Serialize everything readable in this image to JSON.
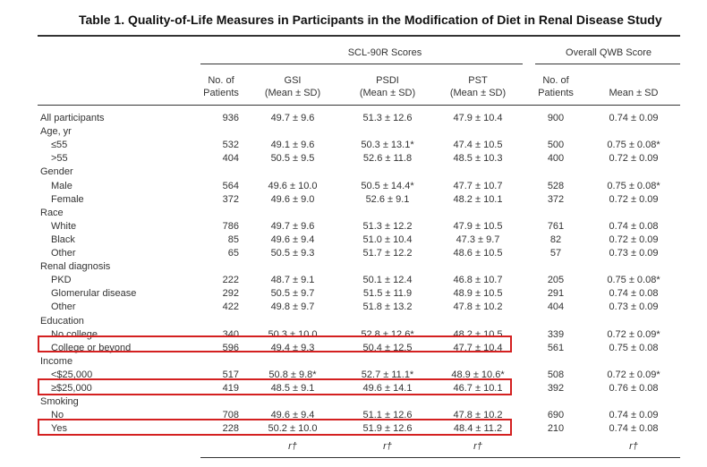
{
  "title": "Table 1. Quality-of-Life Measures in Participants in the Modification of Diet in Renal Disease Study",
  "group_headers": {
    "scl": "SCL-90R Scores",
    "qwb": "Overall QWB Score"
  },
  "columns": {
    "n": [
      "No. of",
      "Patients"
    ],
    "gsi": [
      "GSI",
      "(Mean ± SD)"
    ],
    "psdi": [
      "PSDI",
      "(Mean ± SD)"
    ],
    "pst": [
      "PST",
      "(Mean ± SD)"
    ],
    "qn": [
      "No. of",
      "Patients"
    ],
    "qm": [
      "",
      "Mean ± SD"
    ]
  },
  "rows": [
    {
      "label": "All participants",
      "indent": false,
      "n": "936",
      "gsi": "49.7 ± 9.6",
      "psdi": "51.3 ± 12.6",
      "pst": "47.9 ± 10.4",
      "qn": "900",
      "qm": "0.74 ± 0.09"
    },
    {
      "label": "Age, yr",
      "indent": false,
      "n": "",
      "gsi": "",
      "psdi": "",
      "pst": "",
      "qn": "",
      "qm": ""
    },
    {
      "label": "≤55",
      "indent": true,
      "n": "532",
      "gsi": "49.1 ± 9.6",
      "psdi": "50.3 ± 13.1*",
      "pst": "47.4 ± 10.5",
      "qn": "500",
      "qm": "0.75 ± 0.08*"
    },
    {
      "label": ">55",
      "indent": true,
      "n": "404",
      "gsi": "50.5 ± 9.5",
      "psdi": "52.6 ± 11.8",
      "pst": "48.5 ± 10.3",
      "qn": "400",
      "qm": "0.72 ± 0.09"
    },
    {
      "label": "Gender",
      "indent": false,
      "n": "",
      "gsi": "",
      "psdi": "",
      "pst": "",
      "qn": "",
      "qm": ""
    },
    {
      "label": "Male",
      "indent": true,
      "n": "564",
      "gsi": "49.6 ± 10.0",
      "psdi": "50.5 ± 14.4*",
      "pst": "47.7 ± 10.7",
      "qn": "528",
      "qm": "0.75 ± 0.08*"
    },
    {
      "label": "Female",
      "indent": true,
      "n": "372",
      "gsi": "49.6 ± 9.0",
      "psdi": "52.6 ± 9.1",
      "pst": "48.2 ± 10.1",
      "qn": "372",
      "qm": "0.72 ± 0.09"
    },
    {
      "label": "Race",
      "indent": false,
      "n": "",
      "gsi": "",
      "psdi": "",
      "pst": "",
      "qn": "",
      "qm": ""
    },
    {
      "label": "White",
      "indent": true,
      "n": "786",
      "gsi": "49.7 ± 9.6",
      "psdi": "51.3 ± 12.2",
      "pst": "47.9 ± 10.5",
      "qn": "761",
      "qm": "0.74 ± 0.08"
    },
    {
      "label": "Black",
      "indent": true,
      "n": "85",
      "gsi": "49.6 ± 9.4",
      "psdi": "51.0 ± 10.4",
      "pst": "47.3 ± 9.7",
      "qn": "82",
      "qm": "0.72 ± 0.09"
    },
    {
      "label": "Other",
      "indent": true,
      "n": "65",
      "gsi": "50.5 ± 9.3",
      "psdi": "51.7 ± 12.2",
      "pst": "48.6 ± 10.5",
      "qn": "57",
      "qm": "0.73 ± 0.09"
    },
    {
      "label": "Renal diagnosis",
      "indent": false,
      "n": "",
      "gsi": "",
      "psdi": "",
      "pst": "",
      "qn": "",
      "qm": ""
    },
    {
      "label": "PKD",
      "indent": true,
      "n": "222",
      "gsi": "48.7 ± 9.1",
      "psdi": "50.1 ± 12.4",
      "pst": "46.8 ± 10.7",
      "qn": "205",
      "qm": "0.75 ± 0.08*"
    },
    {
      "label": "Glomerular disease",
      "indent": true,
      "n": "292",
      "gsi": "50.5 ± 9.7",
      "psdi": "51.5 ± 11.9",
      "pst": "48.9 ± 10.5",
      "qn": "291",
      "qm": "0.74 ± 0.08"
    },
    {
      "label": "Other",
      "indent": true,
      "n": "422",
      "gsi": "49.8 ± 9.7",
      "psdi": "51.8 ± 13.2",
      "pst": "47.8 ± 10.2",
      "qn": "404",
      "qm": "0.73 ± 0.09"
    },
    {
      "label": "Education",
      "indent": false,
      "n": "",
      "gsi": "",
      "psdi": "",
      "pst": "",
      "qn": "",
      "qm": ""
    },
    {
      "label": "No college",
      "indent": true,
      "n": "340",
      "gsi": "50.3 ± 10.0",
      "psdi": "52.8 ± 12.6*",
      "pst": "48.2 ± 10.5",
      "qn": "339",
      "qm": "0.72 ± 0.09*"
    },
    {
      "label": "College or beyond",
      "indent": true,
      "n": "596",
      "gsi": "49.4 ± 9.3",
      "psdi": "50.4 ± 12.5",
      "pst": "47.7 ± 10.4",
      "qn": "561",
      "qm": "0.75 ± 0.08"
    },
    {
      "label": "Income",
      "indent": false,
      "n": "",
      "gsi": "",
      "psdi": "",
      "pst": "",
      "qn": "",
      "qm": ""
    },
    {
      "label": "<$25,000",
      "indent": true,
      "n": "517",
      "gsi": "50.8 ± 9.8*",
      "psdi": "52.7 ± 11.1*",
      "pst": "48.9 ± 10.6*",
      "qn": "508",
      "qm": "0.72 ± 0.09*"
    },
    {
      "label": "≥$25,000",
      "indent": true,
      "n": "419",
      "gsi": "48.5 ± 9.1",
      "psdi": "49.6 ± 14.1",
      "pst": "46.7 ± 10.1",
      "qn": "392",
      "qm": "0.76 ± 0.08"
    },
    {
      "label": "Smoking",
      "indent": false,
      "n": "",
      "gsi": "",
      "psdi": "",
      "pst": "",
      "qn": "",
      "qm": ""
    },
    {
      "label": "No",
      "indent": true,
      "n": "708",
      "gsi": "49.6 ± 9.4",
      "psdi": "51.1 ± 12.6",
      "pst": "47.8 ± 10.2",
      "qn": "690",
      "qm": "0.74 ± 0.09"
    },
    {
      "label": "Yes",
      "indent": true,
      "n": "228",
      "gsi": "50.2 ± 10.0",
      "psdi": "51.9 ± 12.6",
      "pst": "48.4 ± 11.2",
      "qn": "210",
      "qm": "0.74 ± 0.08"
    }
  ],
  "footer_marks": {
    "gsi": "r†",
    "psdi": "r†",
    "pst": "r†",
    "qm": "r†"
  },
  "highlight_color": "#d42020"
}
